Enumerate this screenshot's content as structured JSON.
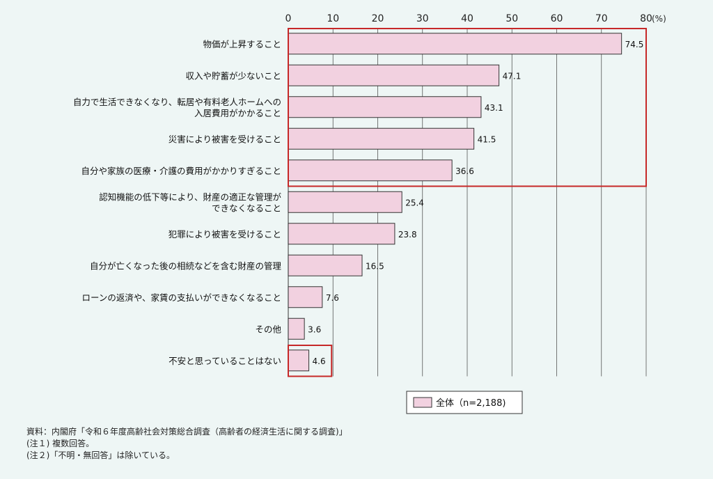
{
  "chart_data": {
    "type": "bar",
    "orientation": "horizontal",
    "unit": "(%)",
    "xlim": [
      0,
      80
    ],
    "ticks": [
      0,
      10,
      20,
      30,
      40,
      50,
      60,
      70,
      80
    ],
    "categories": [
      [
        "物価が上昇すること"
      ],
      [
        "収入や貯蓄が少ないこと"
      ],
      [
        "自力で生活できなくなり、転居や有料老人ホームへの",
        "入居費用がかかること"
      ],
      [
        "災害により被害を受けること"
      ],
      [
        "自分や家族の医療・介護の費用がかかりすぎること"
      ],
      [
        "認知機能の低下等により、財産の適正な管理が",
        "できなくなること"
      ],
      [
        "犯罪により被害を受けること"
      ],
      [
        "自分が亡くなった後の相続などを含む財産の管理"
      ],
      [
        "ローンの返済や、家賃の支払いができなくなること"
      ],
      [
        "その他"
      ],
      [
        "不安と思っていることはない"
      ]
    ],
    "series": [
      {
        "name": "全体（n=2,188)",
        "values": [
          74.5,
          47.1,
          43.1,
          41.5,
          36.6,
          25.4,
          23.8,
          16.5,
          7.6,
          3.6,
          4.6
        ],
        "labels": [
          "74.5",
          "47.1",
          "43.1",
          "41.5",
          "36.6",
          "25.4",
          "23.8",
          "16.5",
          "7.6",
          "3.6",
          "4.6"
        ]
      }
    ],
    "highlight_groups": [
      [
        0,
        4
      ],
      [
        10,
        10
      ]
    ],
    "grid": true,
    "legend": "bottom-center"
  },
  "colors": {
    "bar_fill": "#f2d1e0",
    "bar_stroke": "#333333",
    "highlight": "#c62828",
    "grid": "#555555",
    "background": "#eef6f5"
  },
  "notes": [
    "資料：内閣府「令和６年度高齢社会対策総合調査（高齢者の経済生活に関する調査)」",
    "(注１) 複数回答。",
    "(注２)「不明・無回答」は除いている。"
  ]
}
